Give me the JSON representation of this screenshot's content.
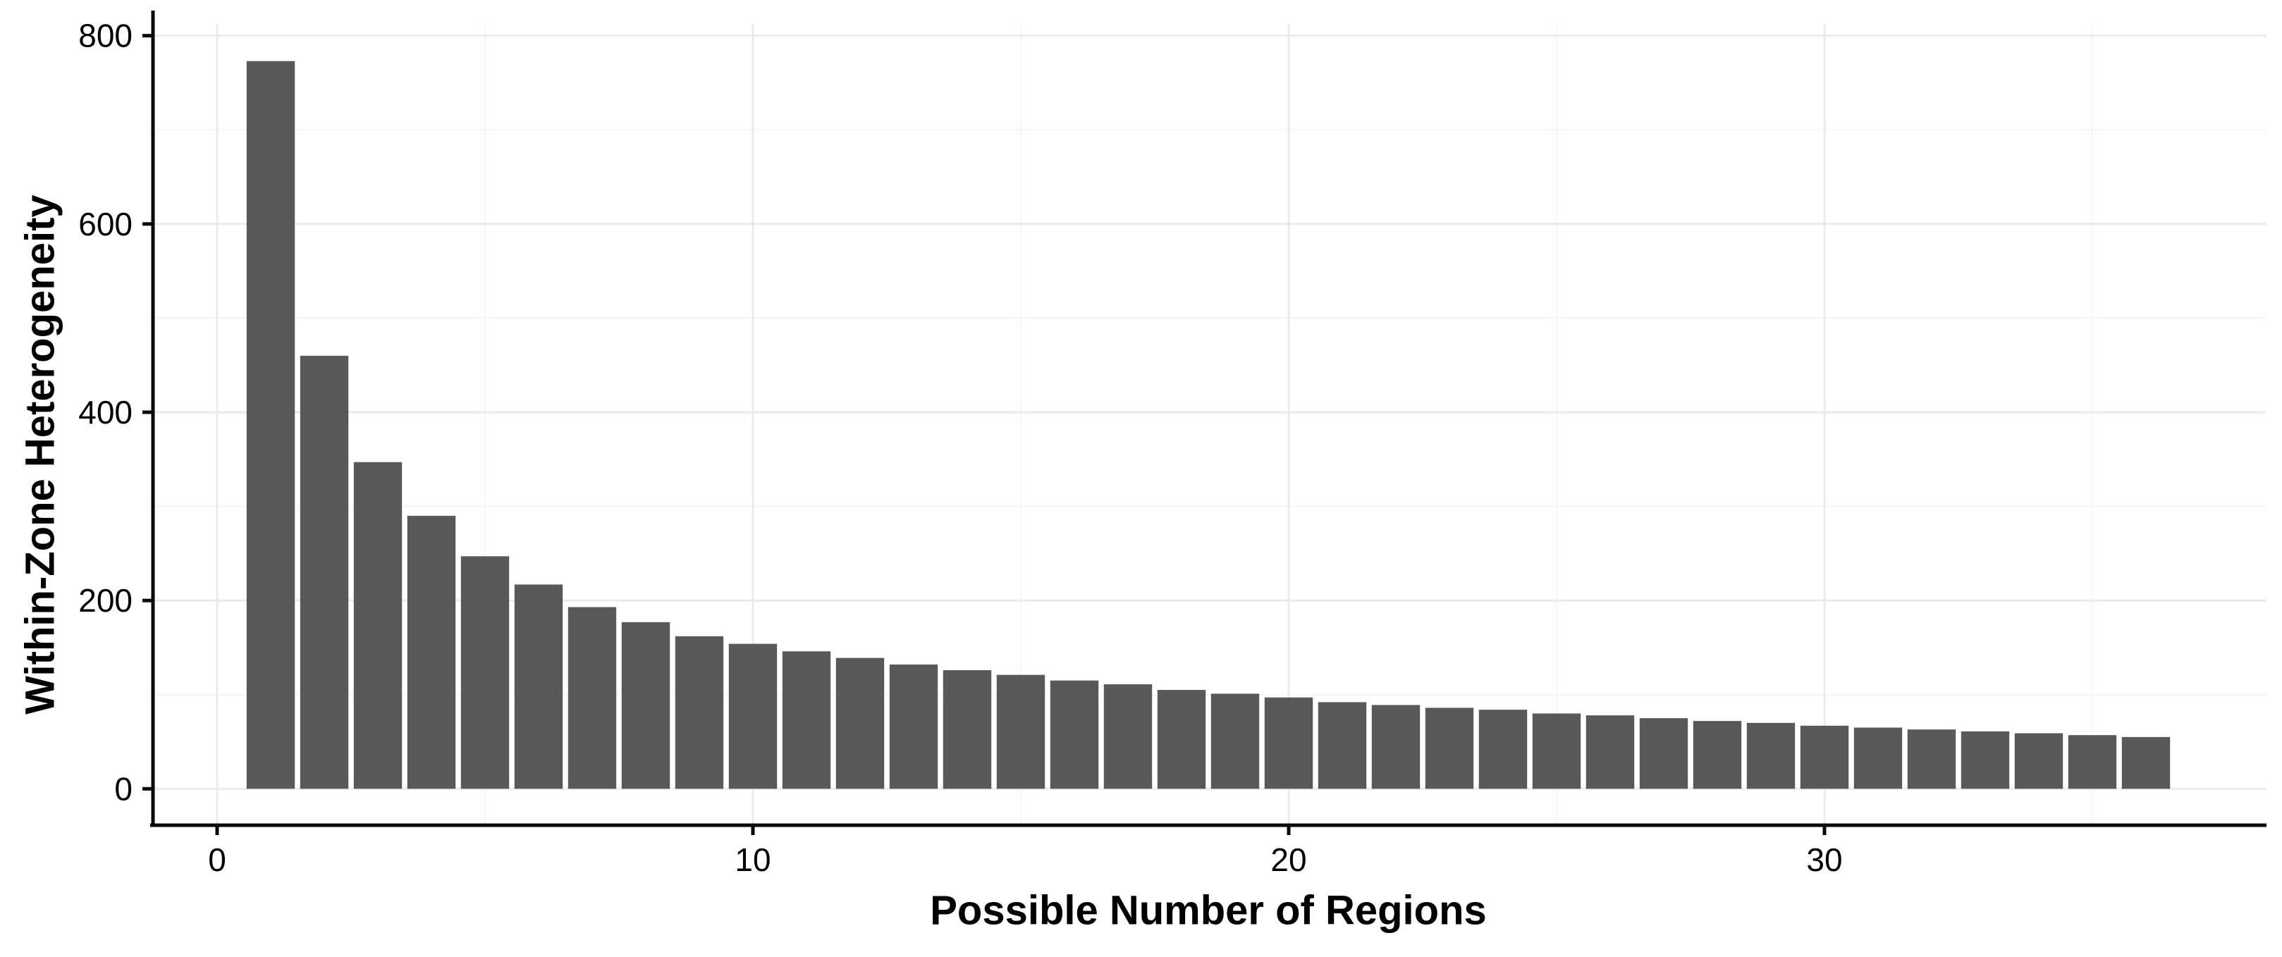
{
  "chart_data": {
    "type": "bar",
    "title": "",
    "xlabel": "Possible Number of Regions",
    "ylabel": "Within-Zone Heterogeneity",
    "x": [
      1,
      2,
      3,
      4,
      5,
      6,
      7,
      8,
      9,
      10,
      11,
      12,
      13,
      14,
      15,
      16,
      17,
      18,
      19,
      20,
      21,
      22,
      23,
      24,
      25,
      26,
      27,
      28,
      29,
      30,
      31,
      32,
      33,
      34,
      35,
      36
    ],
    "values": [
      773,
      460,
      347,
      290,
      247,
      217,
      193,
      177,
      162,
      154,
      146,
      139,
      132,
      126,
      121,
      115,
      111,
      105,
      101,
      97,
      92,
      89,
      86,
      84,
      80,
      78,
      75,
      72,
      70,
      67,
      65,
      63,
      61,
      59,
      57,
      55
    ],
    "x_ticks": [
      0,
      10,
      20,
      30
    ],
    "y_ticks": [
      0,
      200,
      400,
      600,
      800
    ],
    "x_minor_ticks": [
      5,
      15,
      25,
      35
    ],
    "y_minor_ticks": [
      100,
      300,
      500,
      700
    ],
    "xlim": [
      -1.25,
      38.25
    ],
    "ylim": [
      -38.7,
      811.7
    ],
    "bar_width_units": 0.9,
    "grid": true,
    "legend_position": "none",
    "colors": {
      "bar_fill": "#595959",
      "axis_line": "#0a0a0a",
      "tick_text": "#000000",
      "grid_major": "#ebebeb",
      "grid_minor": "#f5f5f5",
      "background": "#ffffff"
    }
  }
}
